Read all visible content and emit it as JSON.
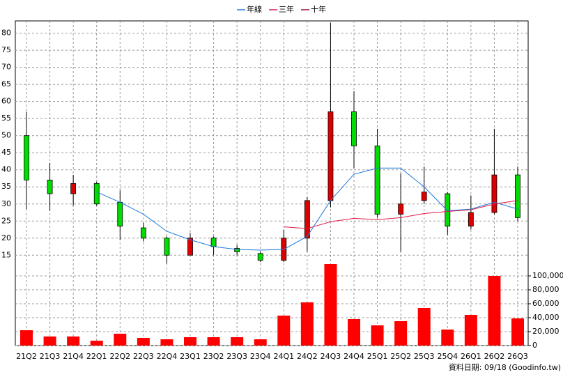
{
  "chart_data": {
    "type": "candlestick",
    "legend": "top",
    "grid": true,
    "categories": [
      "21Q2",
      "21Q3",
      "21Q4",
      "22Q1",
      "22Q2",
      "22Q3",
      "22Q4",
      "23Q1",
      "23Q2",
      "23Q3",
      "23Q4",
      "24Q1",
      "24Q2",
      "24Q3",
      "24Q4",
      "25Q1",
      "25Q2",
      "25Q3",
      "25Q4",
      "26Q1",
      "26Q2",
      "26Q3"
    ],
    "open": [
      37,
      33,
      36,
      30,
      23.5,
      20,
      15,
      20,
      17.5,
      16,
      13.5,
      20,
      31,
      57,
      47,
      27,
      30,
      33.5,
      23.5,
      27.5,
      38.5,
      26
    ],
    "high": [
      57,
      42,
      38.5,
      36.5,
      34,
      24.5,
      20.5,
      21.5,
      20.5,
      18,
      16,
      22.5,
      32,
      83,
      63,
      52,
      39,
      41,
      33.5,
      32.5,
      52,
      41
    ],
    "low": [
      28.5,
      28,
      29.5,
      29.5,
      19.5,
      19,
      12.5,
      15,
      15,
      15,
      13,
      13,
      16,
      29,
      40.5,
      26,
      16,
      30,
      21,
      22.5,
      27,
      25
    ],
    "close": [
      50,
      37,
      33,
      36,
      30.5,
      23,
      20,
      15,
      20,
      17,
      15.5,
      13.5,
      20,
      31,
      57,
      47,
      27,
      31,
      33,
      23.5,
      27.5,
      38.5
    ],
    "up_color": "#00dd00",
    "down_color": "#dd0000",
    "series": [
      {
        "name": "年線",
        "color": "#1f7ad8",
        "values": [
          null,
          null,
          null,
          33.5,
          30.5,
          27,
          22,
          19.5,
          17.5,
          16.7,
          16.5,
          16.7,
          20.5,
          31,
          38.7,
          40.5,
          40.5,
          35,
          28,
          28.5,
          30.5,
          28.5
        ]
      },
      {
        "name": "三年",
        "color": "#e0194a",
        "values": [
          null,
          null,
          null,
          null,
          null,
          null,
          null,
          null,
          null,
          null,
          null,
          23.3,
          22.8,
          24.8,
          25.8,
          25.4,
          26,
          27.2,
          27.8,
          28.3,
          30,
          31
        ]
      },
      {
        "name": "十年",
        "color": "#9c0a4e",
        "values": [
          null,
          null,
          null,
          null,
          null,
          null,
          null,
          null,
          null,
          null,
          null,
          null,
          null,
          null,
          null,
          null,
          null,
          null,
          null,
          null,
          null,
          null
        ]
      }
    ],
    "ylim": [
      12,
      84
    ],
    "yticks": [
      15,
      20,
      25,
      30,
      35,
      40,
      45,
      50,
      55,
      60,
      65,
      70,
      75,
      80
    ],
    "volume": {
      "color": "#ff0000",
      "values": [
        22000,
        13000,
        13000,
        7000,
        17000,
        11000,
        9000,
        12000,
        12000,
        12000,
        9000,
        43000,
        62000,
        117000,
        38000,
        29000,
        35000,
        54000,
        23000,
        44000,
        100000,
        39000
      ],
      "ylim": [
        0,
        120000
      ],
      "yticks": [
        {
          "value": 0,
          "label": "0"
        },
        {
          "value": 20000,
          "label": "20,000"
        },
        {
          "value": 40000,
          "label": "40,000"
        },
        {
          "value": 60000,
          "label": "60,000"
        },
        {
          "value": 80000,
          "label": "80,000"
        },
        {
          "value": 100000,
          "label": "100,000"
        }
      ]
    },
    "footer": "資料日期: 09/18 (Goodinfo.tw)"
  }
}
